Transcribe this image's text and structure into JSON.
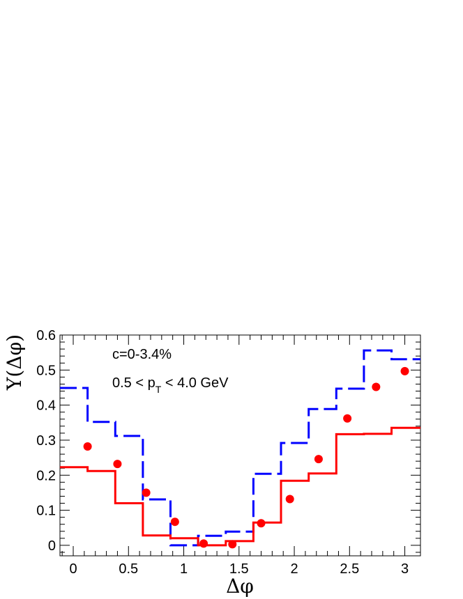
{
  "chart_data": {
    "type": "line",
    "xlabel": "Δφ",
    "ylabel": "Y(Δφ)",
    "xlim": [
      -0.12,
      3.1416
    ],
    "ylim": [
      -0.03,
      0.6
    ],
    "x_ticks": [
      0,
      0.5,
      1,
      1.5,
      2,
      2.5,
      3
    ],
    "x_tick_labels": [
      "0",
      "0.5",
      "1",
      "1.5",
      "2",
      "2.5",
      "3"
    ],
    "y_ticks": [
      0,
      0.1,
      0.2,
      0.3,
      0.4,
      0.5,
      0.6
    ],
    "y_tick_labels": [
      "0",
      "0.1",
      "0.2",
      "0.3",
      "0.4",
      "0.5",
      "0.6"
    ],
    "annotations": {
      "centrality": "c=0-3.4%",
      "pt_prefix": "0.5 < p",
      "pt_sub": "T",
      "pt_suffix": " < 4.0 GeV"
    },
    "bin_edges": [
      -0.12,
      0.13,
      0.38,
      0.63,
      0.88,
      1.13,
      1.38,
      1.63,
      1.88,
      2.13,
      2.38,
      2.63,
      2.88,
      3.1416
    ],
    "series": [
      {
        "style": "dashed-step",
        "color": "#0000ff",
        "values": [
          0.449,
          0.352,
          0.312,
          0.131,
          0.0,
          0.027,
          0.039,
          0.204,
          0.292,
          0.389,
          0.447,
          0.556,
          0.531
        ]
      },
      {
        "style": "solid-step",
        "color": "#ff0000",
        "values": [
          0.223,
          0.212,
          0.12,
          0.028,
          0.02,
          0.0,
          0.012,
          0.065,
          0.184,
          0.205,
          0.317,
          0.318,
          0.335
        ]
      },
      {
        "style": "markers",
        "color": "#ff0000",
        "x": [
          0.13,
          0.4,
          0.66,
          0.92,
          1.18,
          1.44,
          1.7,
          1.96,
          2.22,
          2.48,
          2.74,
          3.0
        ],
        "values": [
          0.282,
          0.232,
          0.15,
          0.067,
          0.005,
          0.003,
          0.063,
          0.132,
          0.246,
          0.362,
          0.452,
          0.497
        ]
      }
    ]
  }
}
